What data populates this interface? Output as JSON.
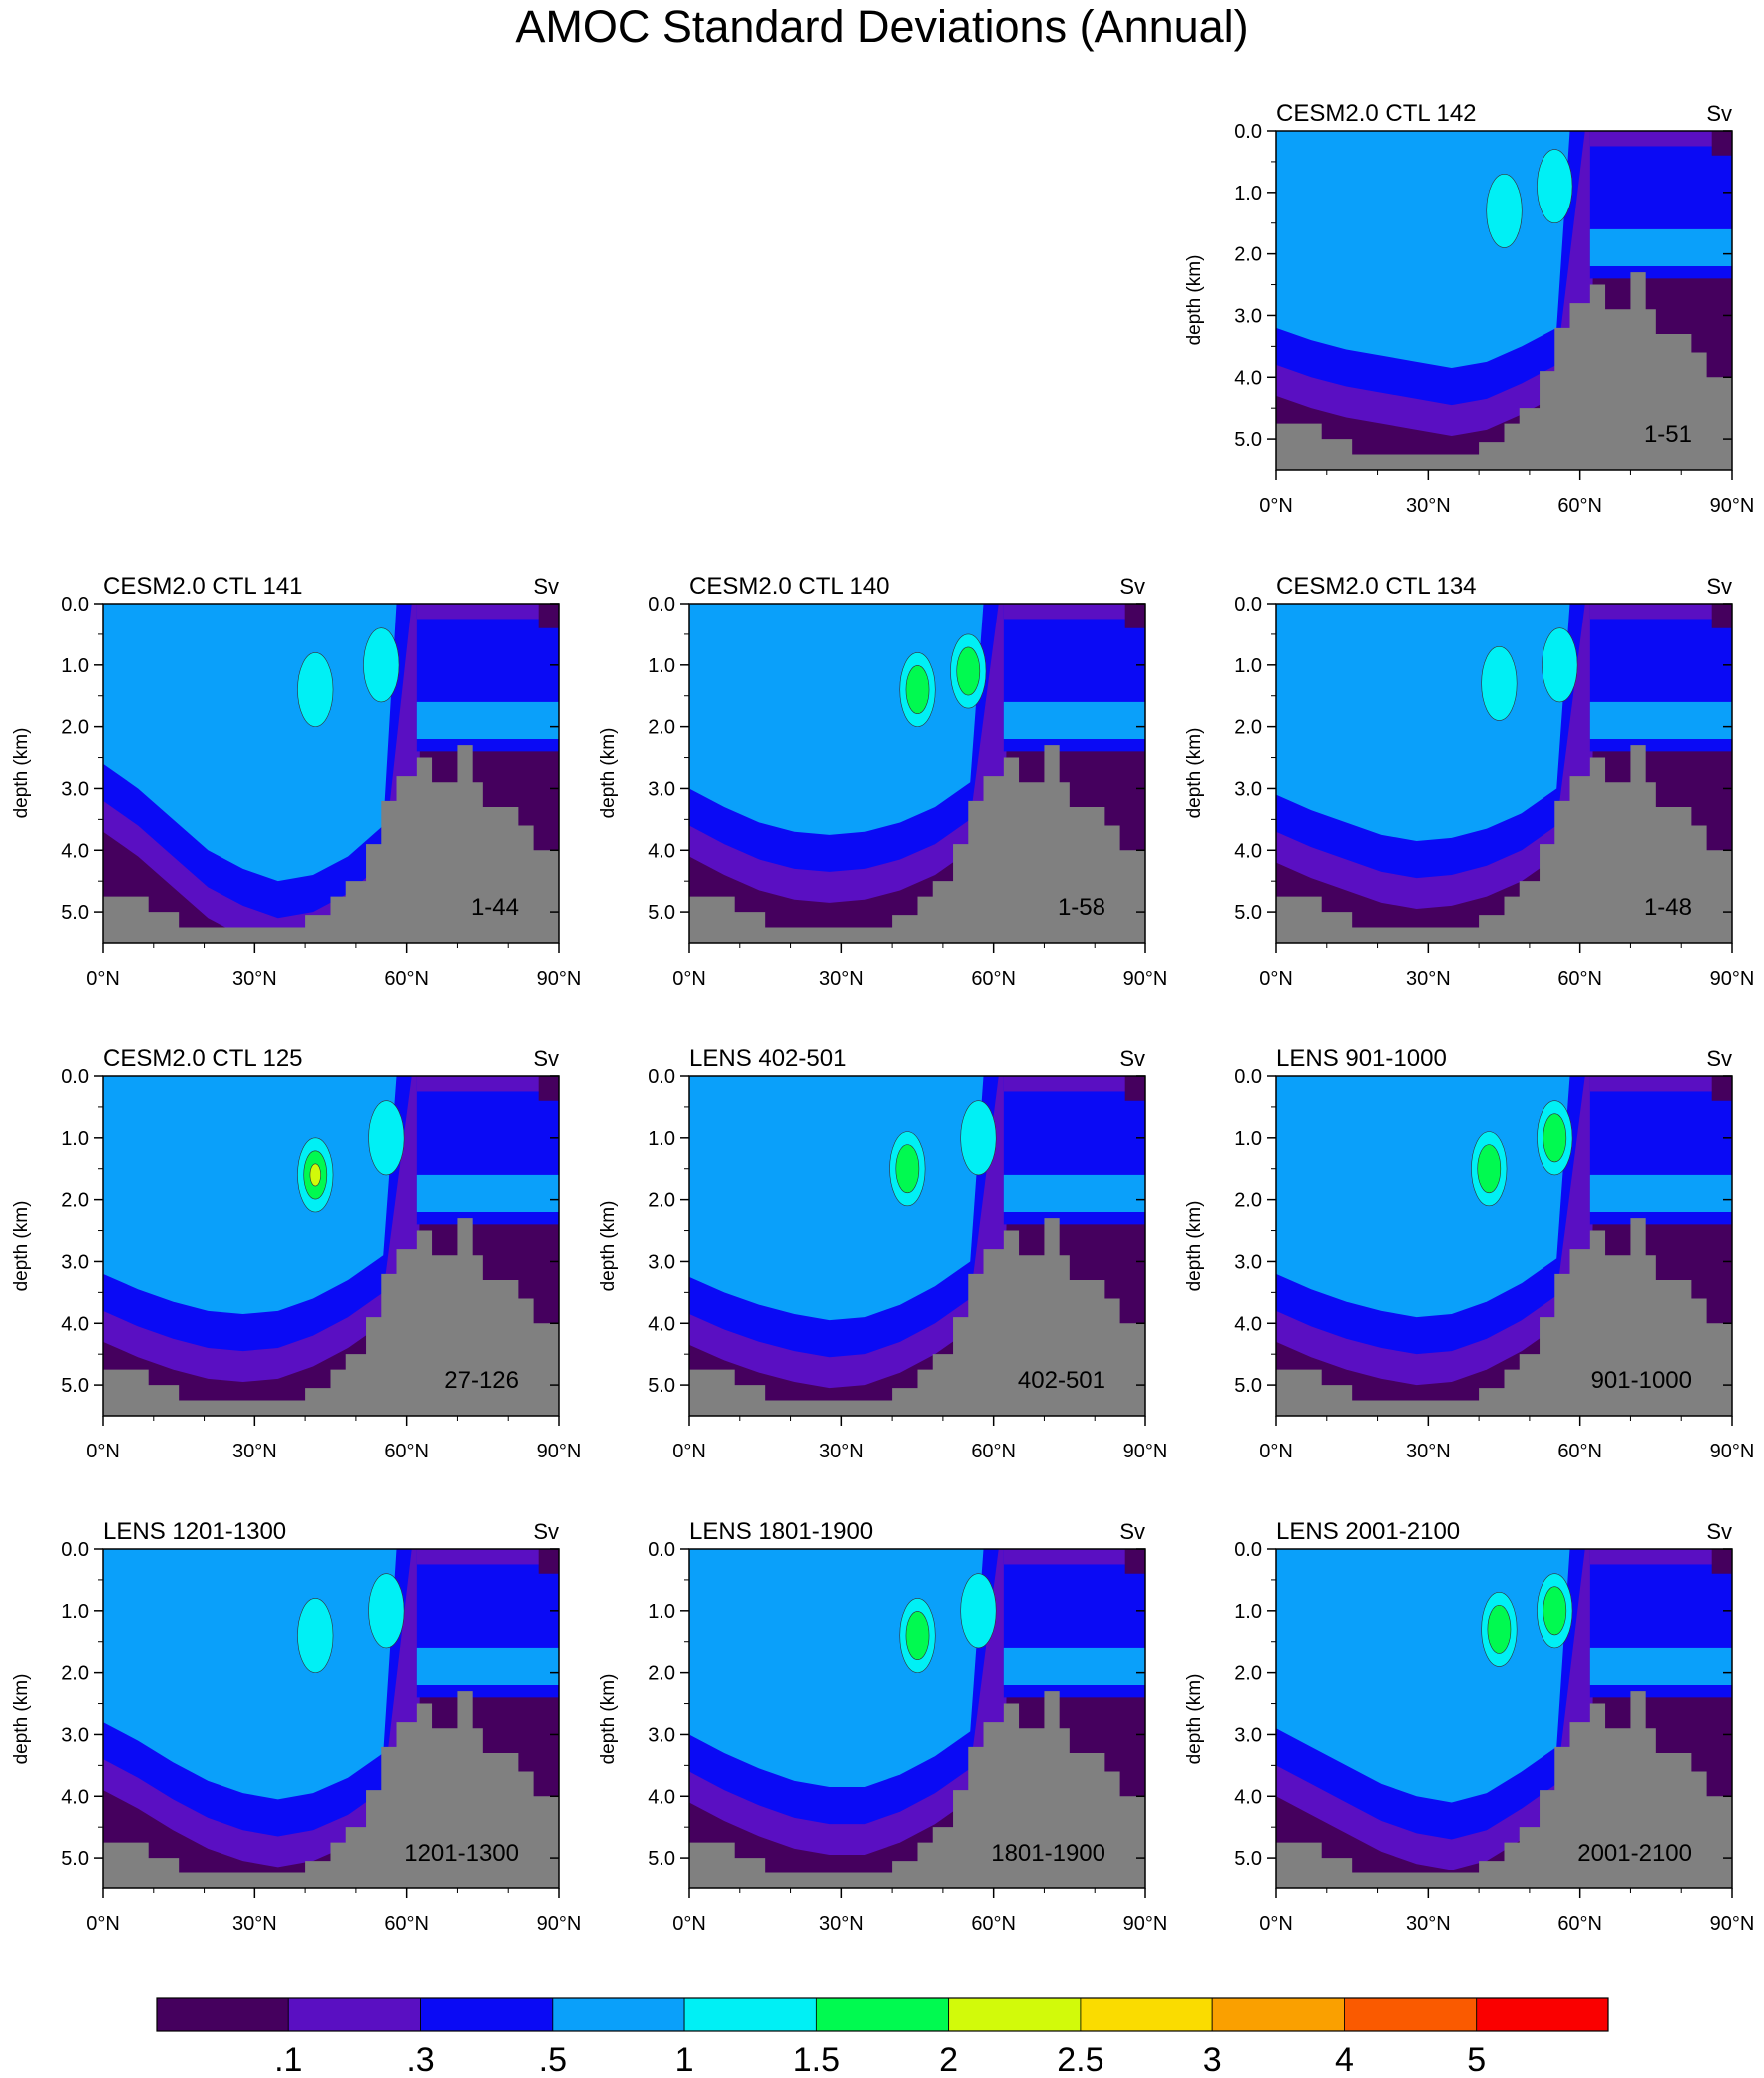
{
  "title": "AMOC Standard Deviations (Annual)",
  "colors": {
    "land": "#808080",
    "levels": [
      "#45005e",
      "#5a0fc2",
      "#0a0af5",
      "#0aa0fa",
      "#00f0f5",
      "#00fa50",
      "#d2fa0a",
      "#fadc00",
      "#faa000",
      "#fa5a00",
      "#fa0000"
    ]
  },
  "chart_data": {
    "type": "heatmap",
    "colorbar": {
      "labels": [
        ".1",
        ".3",
        ".5",
        "1",
        "1.5",
        "2",
        "2.5",
        "3",
        "4",
        "5"
      ],
      "levels": [
        0.1,
        0.3,
        0.5,
        1,
        1.5,
        2,
        2.5,
        3,
        4,
        5
      ]
    },
    "common": {
      "units": "Sv",
      "ylabel": "depth (km)",
      "xlim": [
        0,
        90
      ],
      "ylim": [
        5.5,
        0.0
      ],
      "xticks": [
        "0°N",
        "30°N",
        "60°N",
        "90°N"
      ],
      "yticks": [
        "0.0",
        "1.0",
        "2.0",
        "3.0",
        "4.0",
        "5.0"
      ]
    },
    "panels": [
      {
        "title": "CESM2.0 CTL 142",
        "years": "1-51",
        "profile": [
          3.2,
          3.4,
          3.55,
          3.65,
          3.75,
          3.85,
          3.75,
          3.5,
          3.2,
          2.6,
          1.9,
          1.5,
          1.2,
          1.05
        ],
        "cores": [
          {
            "lat": 45,
            "dep": 1.3,
            "v": 1.2
          },
          {
            "lat": 55,
            "dep": 0.9,
            "v": 1.2
          }
        ]
      },
      {
        "title": "CESM2.0 CTL 141",
        "years": "1-44",
        "profile": [
          2.6,
          3.0,
          3.5,
          4.0,
          4.3,
          4.5,
          4.4,
          4.1,
          3.6,
          3.0,
          2.4,
          1.9,
          1.5,
          1.3
        ],
        "cores": [
          {
            "lat": 42,
            "dep": 1.4,
            "v": 1.2
          },
          {
            "lat": 55,
            "dep": 1.0,
            "v": 1.2
          }
        ]
      },
      {
        "title": "CESM2.0 CTL 140",
        "years": "1-58",
        "profile": [
          3.0,
          3.3,
          3.55,
          3.7,
          3.75,
          3.7,
          3.55,
          3.3,
          2.9,
          2.4,
          1.9,
          1.5,
          1.3,
          1.1
        ],
        "cores": [
          {
            "lat": 45,
            "dep": 1.4,
            "v": 1.7
          },
          {
            "lat": 55,
            "dep": 1.1,
            "v": 1.7
          }
        ]
      },
      {
        "title": "CESM2.0 CTL 134",
        "years": "1-48",
        "profile": [
          3.1,
          3.35,
          3.55,
          3.75,
          3.85,
          3.8,
          3.65,
          3.4,
          3.0,
          2.5,
          2.0,
          1.6,
          1.3,
          1.1
        ],
        "cores": [
          {
            "lat": 44,
            "dep": 1.3,
            "v": 1.2
          },
          {
            "lat": 56,
            "dep": 1.0,
            "v": 1.2
          }
        ]
      },
      {
        "title": "CESM2.0 CTL 125",
        "years": "27-126",
        "profile": [
          3.2,
          3.45,
          3.65,
          3.8,
          3.85,
          3.8,
          3.6,
          3.3,
          2.9,
          2.4,
          1.9,
          1.5,
          1.3,
          1.1
        ],
        "cores": [
          {
            "lat": 42,
            "dep": 1.6,
            "v": 2.2
          },
          {
            "lat": 56,
            "dep": 1.0,
            "v": 1.2
          }
        ]
      },
      {
        "title": "LENS 402-501",
        "years": "402-501",
        "profile": [
          3.25,
          3.5,
          3.7,
          3.85,
          3.95,
          3.9,
          3.7,
          3.4,
          3.0,
          2.5,
          2.0,
          1.6,
          1.3,
          1.1
        ],
        "cores": [
          {
            "lat": 43,
            "dep": 1.5,
            "v": 1.7
          },
          {
            "lat": 57,
            "dep": 1.0,
            "v": 1.2
          }
        ]
      },
      {
        "title": "LENS 901-1000",
        "years": "901-1000",
        "profile": [
          3.2,
          3.45,
          3.65,
          3.8,
          3.9,
          3.85,
          3.65,
          3.35,
          2.95,
          2.5,
          2.0,
          1.6,
          1.3,
          1.1
        ],
        "cores": [
          {
            "lat": 42,
            "dep": 1.5,
            "v": 1.7
          },
          {
            "lat": 55,
            "dep": 1.0,
            "v": 1.7
          }
        ]
      },
      {
        "title": "LENS 1201-1300",
        "years": "1201-1300",
        "profile": [
          2.8,
          3.1,
          3.45,
          3.75,
          3.95,
          4.05,
          3.95,
          3.7,
          3.3,
          2.8,
          2.2,
          1.8,
          1.4,
          1.2
        ],
        "cores": [
          {
            "lat": 42,
            "dep": 1.4,
            "v": 1.2
          },
          {
            "lat": 56,
            "dep": 1.0,
            "v": 1.2
          }
        ]
      },
      {
        "title": "LENS 1801-1900",
        "years": "1801-1900",
        "profile": [
          3.0,
          3.3,
          3.55,
          3.75,
          3.85,
          3.85,
          3.65,
          3.35,
          2.95,
          2.45,
          2.0,
          1.6,
          1.3,
          1.1
        ],
        "cores": [
          {
            "lat": 45,
            "dep": 1.4,
            "v": 1.7
          },
          {
            "lat": 57,
            "dep": 1.0,
            "v": 1.2
          }
        ]
      },
      {
        "title": "LENS 2001-2100",
        "years": "2001-2100",
        "profile": [
          2.9,
          3.2,
          3.5,
          3.8,
          4.0,
          4.1,
          3.95,
          3.6,
          3.2,
          2.6,
          2.1,
          1.7,
          1.4,
          1.2
        ],
        "cores": [
          {
            "lat": 44,
            "dep": 1.3,
            "v": 1.7
          },
          {
            "lat": 55,
            "dep": 1.0,
            "v": 1.7
          }
        ]
      }
    ]
  }
}
